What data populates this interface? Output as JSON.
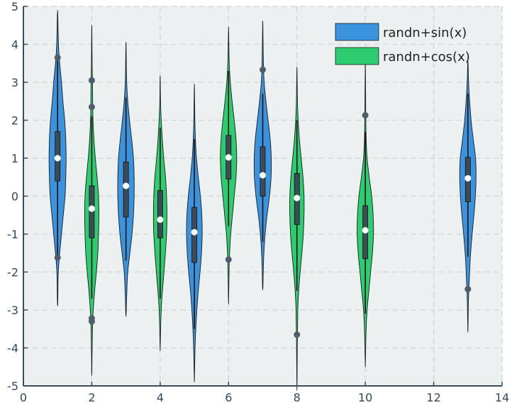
{
  "chart_data": {
    "type": "violin",
    "title": "",
    "xlabel": "",
    "ylabel": "",
    "xlim": [
      0,
      14
    ],
    "ylim": [
      -5,
      5
    ],
    "xticks": [
      0,
      2,
      4,
      6,
      8,
      10,
      12,
      14
    ],
    "yticks": [
      -5,
      -4,
      -3,
      -2,
      -1,
      0,
      1,
      2,
      3,
      4,
      5
    ],
    "grid": true,
    "legend_position": "top-right",
    "series": [
      {
        "name": "randn+sin(x)",
        "color": "#3b93dd",
        "violins": [
          {
            "x": 1,
            "min": -2.8,
            "max": 4.8,
            "q1": 0.4,
            "median": 1.0,
            "q3": 1.7,
            "whisker_low": -1.6,
            "whisker_high": 3.6,
            "outliers": [
              3.65,
              -1.62
            ],
            "density": [
              [
                -2.8,
                0.01
              ],
              [
                -2.0,
                0.04
              ],
              [
                -1.5,
                0.12
              ],
              [
                -1.0,
                0.22
              ],
              [
                -0.5,
                0.32
              ],
              [
                0.0,
                0.42
              ],
              [
                0.5,
                0.46
              ],
              [
                1.0,
                0.48
              ],
              [
                1.5,
                0.46
              ],
              [
                2.0,
                0.4
              ],
              [
                2.5,
                0.3
              ],
              [
                3.0,
                0.22
              ],
              [
                3.5,
                0.12
              ],
              [
                4.0,
                0.05
              ],
              [
                4.8,
                0.01
              ]
            ]
          },
          {
            "x": 3,
            "min": -3.1,
            "max": 4.0,
            "q1": -0.55,
            "median": 0.27,
            "q3": 0.9,
            "whisker_low": -1.7,
            "whisker_high": 2.6,
            "outliers": [],
            "density": [
              [
                -3.1,
                0.01
              ],
              [
                -2.5,
                0.05
              ],
              [
                -2.0,
                0.1
              ],
              [
                -1.5,
                0.22
              ],
              [
                -1.0,
                0.34
              ],
              [
                -0.5,
                0.42
              ],
              [
                0.0,
                0.46
              ],
              [
                0.5,
                0.46
              ],
              [
                1.0,
                0.42
              ],
              [
                1.5,
                0.32
              ],
              [
                2.0,
                0.2
              ],
              [
                2.5,
                0.1
              ],
              [
                3.0,
                0.04
              ],
              [
                3.5,
                0.02
              ],
              [
                4.0,
                0.005
              ]
            ]
          },
          {
            "x": 5,
            "min": -4.8,
            "max": 2.85,
            "q1": -1.75,
            "median": -0.95,
            "q3": -0.3,
            "whisker_low": -3.5,
            "whisker_high": 1.5,
            "outliers": [],
            "density": [
              [
                -4.8,
                0.005
              ],
              [
                -4.0,
                0.04
              ],
              [
                -3.5,
                0.08
              ],
              [
                -3.0,
                0.14
              ],
              [
                -2.5,
                0.22
              ],
              [
                -2.0,
                0.32
              ],
              [
                -1.5,
                0.4
              ],
              [
                -1.0,
                0.44
              ],
              [
                -0.5,
                0.42
              ],
              [
                0.0,
                0.34
              ],
              [
                0.5,
                0.22
              ],
              [
                1.0,
                0.12
              ],
              [
                1.5,
                0.06
              ],
              [
                2.0,
                0.03
              ],
              [
                2.85,
                0.005
              ]
            ]
          },
          {
            "x": 7,
            "min": -2.4,
            "max": 4.55,
            "q1": 0.0,
            "median": 0.55,
            "q3": 1.3,
            "whisker_low": -1.2,
            "whisker_high": 2.7,
            "outliers": [
              3.33
            ],
            "density": [
              [
                -2.4,
                0.01
              ],
              [
                -1.8,
                0.04
              ],
              [
                -1.2,
                0.1
              ],
              [
                -0.6,
                0.22
              ],
              [
                0.0,
                0.38
              ],
              [
                0.5,
                0.47
              ],
              [
                1.0,
                0.48
              ],
              [
                1.5,
                0.42
              ],
              [
                2.0,
                0.3
              ],
              [
                2.5,
                0.18
              ],
              [
                3.0,
                0.08
              ],
              [
                3.5,
                0.04
              ],
              [
                4.0,
                0.02
              ],
              [
                4.55,
                0.005
              ]
            ]
          },
          {
            "x": 13,
            "min": -3.5,
            "max": 3.5,
            "q1": -0.15,
            "median": 0.47,
            "q3": 1.02,
            "whisker_low": -1.6,
            "whisker_high": 2.7,
            "outliers": [
              -2.45
            ],
            "density": [
              [
                -3.5,
                0.005
              ],
              [
                -2.8,
                0.03
              ],
              [
                -2.2,
                0.08
              ],
              [
                -1.6,
                0.14
              ],
              [
                -1.0,
                0.24
              ],
              [
                -0.5,
                0.34
              ],
              [
                0.0,
                0.42
              ],
              [
                0.5,
                0.46
              ],
              [
                1.0,
                0.43
              ],
              [
                1.5,
                0.3
              ],
              [
                2.0,
                0.18
              ],
              [
                2.5,
                0.1
              ],
              [
                3.0,
                0.04
              ],
              [
                3.5,
                0.01
              ]
            ]
          }
        ]
      },
      {
        "name": "randn+cos(x)",
        "color": "#2ecc71",
        "violins": [
          {
            "x": 2,
            "min": -4.65,
            "max": 4.4,
            "q1": -1.1,
            "median": -0.33,
            "q3": 0.27,
            "whisker_low": -2.7,
            "whisker_high": 2.1,
            "outliers": [
              3.05,
              2.35,
              -3.22,
              -3.3
            ],
            "density": [
              [
                -4.65,
                0.005
              ],
              [
                -4.0,
                0.02
              ],
              [
                -3.2,
                0.06
              ],
              [
                -2.5,
                0.16
              ],
              [
                -2.0,
                0.26
              ],
              [
                -1.5,
                0.34
              ],
              [
                -1.0,
                0.38
              ],
              [
                -0.5,
                0.4
              ],
              [
                0.0,
                0.38
              ],
              [
                0.5,
                0.3
              ],
              [
                1.0,
                0.2
              ],
              [
                1.5,
                0.12
              ],
              [
                2.0,
                0.07
              ],
              [
                2.5,
                0.05
              ],
              [
                3.0,
                0.04
              ],
              [
                3.5,
                0.02
              ],
              [
                4.4,
                0.005
              ]
            ]
          },
          {
            "x": 4,
            "min": -4.0,
            "max": 3.1,
            "q1": -1.1,
            "median": -0.62,
            "q3": 0.15,
            "whisker_low": -2.7,
            "whisker_high": 1.8,
            "outliers": [],
            "density": [
              [
                -4.0,
                0.005
              ],
              [
                -3.4,
                0.03
              ],
              [
                -2.8,
                0.08
              ],
              [
                -2.2,
                0.18
              ],
              [
                -1.6,
                0.28
              ],
              [
                -1.0,
                0.36
              ],
              [
                -0.5,
                0.38
              ],
              [
                0.0,
                0.36
              ],
              [
                0.5,
                0.3
              ],
              [
                1.0,
                0.2
              ],
              [
                1.5,
                0.12
              ],
              [
                2.0,
                0.06
              ],
              [
                2.5,
                0.02
              ],
              [
                3.1,
                0.005
              ]
            ]
          },
          {
            "x": 6,
            "min": -2.75,
            "max": 4.35,
            "q1": 0.45,
            "median": 1.02,
            "q3": 1.6,
            "whisker_low": -0.8,
            "whisker_high": 3.3,
            "outliers": [
              -1.67
            ],
            "density": [
              [
                -2.75,
                0.005
              ],
              [
                -2.0,
                0.03
              ],
              [
                -1.5,
                0.06
              ],
              [
                -1.0,
                0.12
              ],
              [
                -0.5,
                0.22
              ],
              [
                0.0,
                0.32
              ],
              [
                0.5,
                0.42
              ],
              [
                1.0,
                0.46
              ],
              [
                1.5,
                0.42
              ],
              [
                2.0,
                0.32
              ],
              [
                2.5,
                0.2
              ],
              [
                3.0,
                0.1
              ],
              [
                3.5,
                0.04
              ],
              [
                4.35,
                0.005
              ]
            ]
          },
          {
            "x": 8,
            "min": -5.0,
            "max": 3.3,
            "q1": -0.75,
            "median": -0.05,
            "q3": 0.6,
            "whisker_low": -2.5,
            "whisker_high": 2.0,
            "outliers": [
              -3.65
            ],
            "density": [
              [
                -5.0,
                0.005
              ],
              [
                -4.0,
                0.02
              ],
              [
                -3.0,
                0.05
              ],
              [
                -2.5,
                0.1
              ],
              [
                -2.0,
                0.18
              ],
              [
                -1.5,
                0.28
              ],
              [
                -1.0,
                0.36
              ],
              [
                -0.5,
                0.4
              ],
              [
                0.0,
                0.4
              ],
              [
                0.5,
                0.34
              ],
              [
                1.0,
                0.24
              ],
              [
                1.5,
                0.14
              ],
              [
                2.0,
                0.07
              ],
              [
                2.5,
                0.03
              ],
              [
                3.3,
                0.005
              ]
            ]
          },
          {
            "x": 10,
            "min": -4.4,
            "max": 3.4,
            "q1": -1.65,
            "median": -0.9,
            "q3": -0.25,
            "whisker_low": -3.1,
            "whisker_high": 1.7,
            "outliers": [
              2.13
            ],
            "density": [
              [
                -4.4,
                0.005
              ],
              [
                -3.6,
                0.04
              ],
              [
                -3.0,
                0.1
              ],
              [
                -2.5,
                0.2
              ],
              [
                -2.0,
                0.3
              ],
              [
                -1.5,
                0.4
              ],
              [
                -1.0,
                0.46
              ],
              [
                -0.5,
                0.44
              ],
              [
                0.0,
                0.36
              ],
              [
                0.5,
                0.22
              ],
              [
                1.0,
                0.1
              ],
              [
                1.5,
                0.05
              ],
              [
                2.0,
                0.03
              ],
              [
                2.5,
                0.02
              ],
              [
                3.4,
                0.005
              ]
            ]
          }
        ]
      }
    ]
  }
}
